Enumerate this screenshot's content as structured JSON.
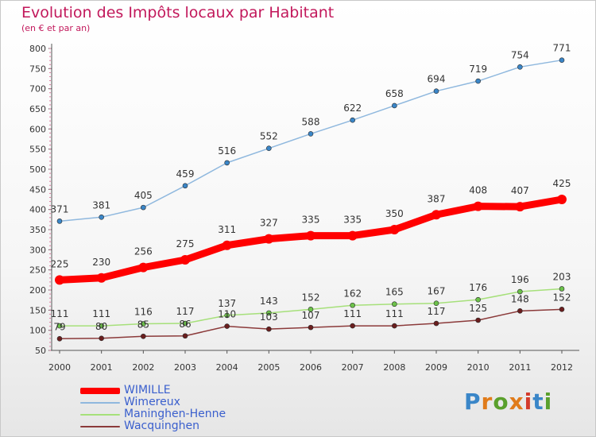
{
  "title": "Evolution des Impôts locaux par Habitant",
  "subtitle": "(en € et par an)",
  "logo_text": "Proxiti",
  "logo_colors": [
    "#3a86c8",
    "#e07b1a",
    "#5aa02c",
    "#e07b1a",
    "#d33b2c",
    "#3a86c8",
    "#5aa02c"
  ],
  "chart_data": {
    "type": "line",
    "title": "Evolution des Impôts locaux par Habitant",
    "subtitle": "(en € et par an)",
    "xlabel": "",
    "ylabel": "",
    "x": [
      "2000",
      "2001",
      "2002",
      "2003",
      "2004",
      "2005",
      "2006",
      "2007",
      "2008",
      "2009",
      "2010",
      "2011",
      "2012"
    ],
    "ylim": [
      50,
      800
    ],
    "yticks": [
      50,
      100,
      150,
      200,
      250,
      300,
      350,
      400,
      450,
      500,
      550,
      600,
      650,
      700,
      750,
      800
    ],
    "grid": false,
    "legend_position": "bottom-left",
    "series": [
      {
        "name": "WIMILLE",
        "color": "#ff0000",
        "marker_color": "#ff0000",
        "emphasis": true,
        "values": [
          225,
          230,
          256,
          275,
          311,
          327,
          335,
          335,
          350,
          387,
          408,
          407,
          425
        ]
      },
      {
        "name": "Wimereux",
        "color": "#8fb8de",
        "marker_color": "#3a86c8",
        "emphasis": false,
        "values": [
          371,
          381,
          405,
          459,
          516,
          552,
          588,
          622,
          658,
          694,
          719,
          754,
          771
        ]
      },
      {
        "name": "Maninghen-Henne",
        "color": "#a6e07a",
        "marker_color": "#6cc24a",
        "emphasis": false,
        "values": [
          111,
          111,
          116,
          117,
          137,
          143,
          152,
          162,
          165,
          167,
          176,
          196,
          203
        ]
      },
      {
        "name": "Wacquinghen",
        "color": "#8b3a3a",
        "marker_color": "#6b1e1e",
        "emphasis": false,
        "values": [
          79,
          80,
          85,
          86,
          110,
          103,
          107,
          111,
          111,
          117,
          125,
          148,
          152
        ]
      }
    ]
  }
}
